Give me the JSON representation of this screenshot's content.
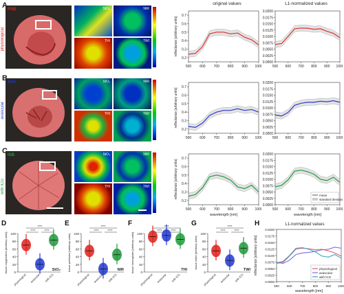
{
  "panels": {
    "A": {
      "letter": "A",
      "tag": "PSB",
      "tag_color": "#e0201a",
      "side": "physiological",
      "side_color": "#e0201a",
      "cols": [
        "RGB",
        "StO₂",
        "NIR"
      ],
      "cols2": [
        "THI",
        "TWI"
      ]
    },
    "B": {
      "letter": "B",
      "tag": "AVS",
      "tag_color": "#2238d0",
      "side": "avascular",
      "side_color": "#2238d0",
      "cols": [
        "RGB",
        "StO₂",
        "NIR"
      ],
      "cols2": [
        "THI",
        "TWI"
      ]
    },
    "C": {
      "letter": "C",
      "tag": "ISB",
      "tag_color": "#1e9a3a",
      "side": "with ICG",
      "side_color": "#1e9a3a",
      "cols": [
        "RGB",
        "StO₂",
        "NIR"
      ],
      "cols2": [
        "THI",
        "TWI"
      ]
    }
  },
  "headers": {
    "original": "original values",
    "l1": "L1-normalized values"
  },
  "spectra": {
    "ylabel": "reflectance [arbitrary units]",
    "xlabel": "wavelength [nm]",
    "xticks": [
      "500",
      "600",
      "700",
      "800",
      "900",
      "1000"
    ],
    "orig_yticks": [
      "0.2",
      "0.3",
      "0.4",
      "0.5",
      "0.6",
      "0.7"
    ],
    "l1_yticks": [
      "0.0000",
      "0.0025",
      "0.0050",
      "0.0075",
      "0.0100",
      "0.0125",
      "0.0150",
      "0.0175",
      "0.0200"
    ],
    "legend_mean": "mean",
    "legend_std": "standard deviation"
  },
  "violins": [
    {
      "letter": "D",
      "ylabel": "tissue oxygenation [arbitrary units]",
      "corner": "StO₂",
      "sig": [
        "****",
        "****",
        "****"
      ],
      "cats": [
        "physiological",
        "avascular",
        "with ICG"
      ]
    },
    {
      "letter": "E",
      "ylabel": "tissue perfusion [arbitrary units]",
      "corner": "NIR",
      "sig": [
        "****",
        "****",
        "****"
      ],
      "cats": [
        "physiological",
        "avascular",
        "with ICG"
      ]
    },
    {
      "letter": "F",
      "ylabel": "tissue hemoglobin [arbitrary units]",
      "corner": "THI",
      "sig": [
        "****",
        "****",
        "****"
      ],
      "cats": [
        "physiological",
        "avascular",
        "with ICG"
      ]
    },
    {
      "letter": "G",
      "ylabel": "tissue water [arbitrary units]",
      "corner": "TWI",
      "sig": [
        "****",
        "****",
        "****"
      ],
      "cats": [
        "physiological",
        "avascular",
        "with ICG"
      ]
    }
  ],
  "violin_yticks": [
    "0",
    "20",
    "40",
    "60",
    "80",
    "100"
  ],
  "panelH": {
    "letter": "H",
    "title": "L1-normalized values",
    "ylabel": "reflectance [arbitrary units]",
    "xlabel": "wavelength [nm]",
    "legend": [
      {
        "name": "physiological",
        "color": "#e05a7a"
      },
      {
        "name": "avascular",
        "color": "#7a6ae0"
      },
      {
        "name": "with ICG",
        "color": "#3aa6b8"
      }
    ]
  },
  "chart_data": [
    {
      "type": "line",
      "title": "original values",
      "panel": "A",
      "xlabel": "wavelength [nm]",
      "ylabel": "reflectance [arbitrary units]",
      "x": [
        500,
        550,
        600,
        650,
        700,
        750,
        800,
        850,
        900,
        950,
        1000
      ],
      "xlim": [
        500,
        1000
      ],
      "ylim": [
        0.15,
        0.75
      ],
      "series": [
        {
          "name": "mean",
          "values": [
            0.24,
            0.25,
            0.33,
            0.48,
            0.5,
            0.5,
            0.48,
            0.49,
            0.44,
            0.41,
            0.35
          ]
        }
      ]
    },
    {
      "type": "line",
      "title": "L1-normalized values",
      "panel": "A",
      "xlabel": "wavelength [nm]",
      "ylabel": "reflectance [arbitrary units]",
      "x": [
        500,
        550,
        600,
        650,
        700,
        750,
        800,
        850,
        900,
        950,
        1000
      ],
      "xlim": [
        500,
        1000
      ],
      "ylim": [
        0,
        0.02
      ],
      "series": [
        {
          "name": "mean",
          "values": [
            0.0068,
            0.0072,
            0.01,
            0.013,
            0.0133,
            0.0132,
            0.0128,
            0.013,
            0.012,
            0.0112,
            0.0095
          ]
        }
      ]
    },
    {
      "type": "line",
      "title": "original values",
      "panel": "B",
      "xlabel": "wavelength [nm]",
      "ylabel": "reflectance [arbitrary units]",
      "x": [
        500,
        550,
        600,
        650,
        700,
        750,
        800,
        850,
        900,
        950,
        1000
      ],
      "xlim": [
        500,
        1000
      ],
      "ylim": [
        0.15,
        0.75
      ],
      "series": [
        {
          "name": "mean",
          "values": [
            0.23,
            0.22,
            0.27,
            0.36,
            0.4,
            0.42,
            0.42,
            0.44,
            0.42,
            0.43,
            0.4
          ]
        }
      ]
    },
    {
      "type": "line",
      "title": "L1-normalized values",
      "panel": "B",
      "xlabel": "wavelength [nm]",
      "ylabel": "reflectance [arbitrary units]",
      "x": [
        500,
        550,
        600,
        650,
        700,
        750,
        800,
        850,
        900,
        950,
        1000
      ],
      "xlim": [
        500,
        1000
      ],
      "ylim": [
        0,
        0.02
      ],
      "series": [
        {
          "name": "mean",
          "values": [
            0.0072,
            0.0068,
            0.0082,
            0.011,
            0.0118,
            0.0122,
            0.0122,
            0.0126,
            0.0124,
            0.0128,
            0.0122
          ]
        }
      ]
    },
    {
      "type": "line",
      "title": "original values",
      "panel": "C",
      "xlabel": "wavelength [nm]",
      "ylabel": "reflectance [arbitrary units]",
      "x": [
        500,
        550,
        600,
        650,
        700,
        750,
        800,
        850,
        900,
        950,
        1000
      ],
      "xlim": [
        500,
        1000
      ],
      "ylim": [
        0.15,
        0.75
      ],
      "series": [
        {
          "name": "mean",
          "values": [
            0.25,
            0.27,
            0.35,
            0.48,
            0.5,
            0.48,
            0.44,
            0.36,
            0.34,
            0.38,
            0.3
          ]
        }
      ]
    },
    {
      "type": "line",
      "title": "L1-normalized values",
      "panel": "C",
      "xlabel": "wavelength [nm]",
      "ylabel": "reflectance [arbitrary units]",
      "x": [
        500,
        550,
        600,
        650,
        700,
        750,
        800,
        850,
        900,
        950,
        1000
      ],
      "xlim": [
        500,
        1000
      ],
      "ylim": [
        0,
        0.02
      ],
      "series": [
        {
          "name": "mean",
          "values": [
            0.007,
            0.0076,
            0.0098,
            0.0132,
            0.0136,
            0.013,
            0.012,
            0.01,
            0.0095,
            0.0108,
            0.0088
          ]
        }
      ]
    },
    {
      "type": "line",
      "title": "L1-normalized values",
      "panel": "H",
      "xlabel": "wavelength [nm]",
      "ylabel": "reflectance [arbitrary units]",
      "x": [
        500,
        550,
        600,
        650,
        700,
        750,
        800,
        850,
        900,
        950,
        1000
      ],
      "xlim": [
        500,
        1000
      ],
      "ylim": [
        0,
        0.02
      ],
      "series": [
        {
          "name": "physiological",
          "values": [
            0.007,
            0.0074,
            0.0098,
            0.0125,
            0.0128,
            0.0126,
            0.0122,
            0.0124,
            0.0118,
            0.011,
            0.0098
          ]
        },
        {
          "name": "avascular",
          "values": [
            0.0074,
            0.007,
            0.0082,
            0.0104,
            0.011,
            0.0112,
            0.0116,
            0.0122,
            0.0124,
            0.0132,
            0.0128
          ]
        },
        {
          "name": "with ICG",
          "values": [
            0.0072,
            0.0078,
            0.01,
            0.0128,
            0.013,
            0.0124,
            0.0114,
            0.0098,
            0.0094,
            0.0104,
            0.009
          ]
        }
      ]
    },
    {
      "type": "scatter",
      "title": "",
      "panel": "D",
      "ylabel": "tissue oxygenation [arbitrary units]",
      "categories": [
        "physiological",
        "avascular",
        "with ICG"
      ],
      "ylim": [
        0,
        100
      ],
      "series": [
        {
          "name": "median",
          "values": [
            70,
            20,
            83
          ]
        }
      ]
    },
    {
      "type": "scatter",
      "title": "",
      "panel": "E",
      "ylabel": "tissue perfusion [arbitrary units]",
      "categories": [
        "physiological",
        "avascular",
        "with ICG"
      ],
      "ylim": [
        0,
        100
      ],
      "series": [
        {
          "name": "median",
          "values": [
            55,
            8,
            45
          ]
        }
      ]
    },
    {
      "type": "scatter",
      "title": "",
      "panel": "F",
      "ylabel": "tissue hemoglobin [arbitrary units]",
      "categories": [
        "physiological",
        "avascular",
        "with ICG"
      ],
      "ylim": [
        0,
        100
      ],
      "series": [
        {
          "name": "median",
          "values": [
            92,
            95,
            85
          ]
        }
      ]
    },
    {
      "type": "scatter",
      "title": "",
      "panel": "G",
      "ylabel": "tissue water [arbitrary units]",
      "categories": [
        "physiological",
        "avascular",
        "with ICG"
      ],
      "ylim": [
        0,
        100
      ],
      "series": [
        {
          "name": "median",
          "values": [
            55,
            30,
            62
          ]
        }
      ]
    }
  ]
}
